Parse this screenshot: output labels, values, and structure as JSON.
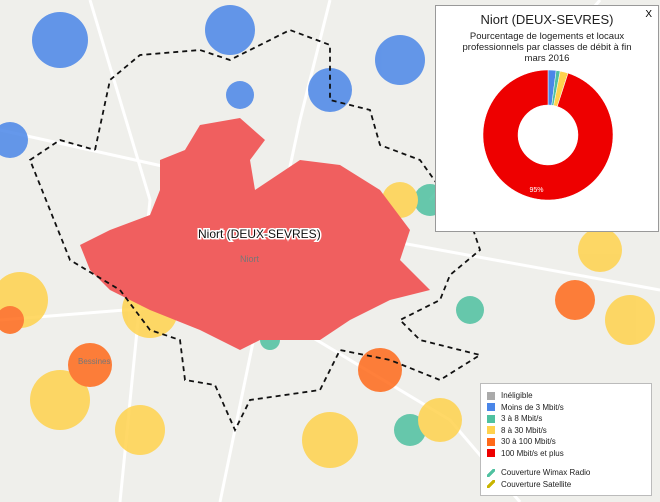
{
  "chart_data": {
    "type": "pie",
    "title": "Niort (DEUX-SEVRES)",
    "subtitle": "Pourcentage de logements et locaux professionnels par classes de débit à fin mars 2016",
    "values": [
      0,
      2,
      1,
      2,
      0,
      95
    ],
    "value_labels": [
      null,
      null,
      null,
      null,
      null,
      "95%"
    ],
    "colors": [
      "#aaaaaa",
      "#4a86e8",
      "#4fc1a0",
      "#ffd24d",
      "#ff6a1a",
      "#ee0000"
    ]
  },
  "close": "X",
  "map_labels": [
    {
      "text": "Niort (DEUX-SEVRES)"
    },
    {
      "text": "Niort"
    },
    {
      "text": "Bessines"
    }
  ],
  "legend": [
    {
      "label": "Inéligible",
      "color": "#aaaaaa"
    },
    {
      "label": "Moins de 3 Mbit/s",
      "color": "#4a86e8"
    },
    {
      "label": "3 à 8 Mbit/s",
      "color": "#4fc1a0"
    },
    {
      "label": "8 à 30 Mbit/s",
      "color": "#ffd24d"
    },
    {
      "label": "30 à 100 Mbit/s",
      "color": "#ff6a1a"
    },
    {
      "label": "100 Mbit/s et plus",
      "color": "#ee0000"
    },
    {
      "label": "Couverture Wimax Radio",
      "color": "#4fc1a0"
    },
    {
      "label": "Couverture Satellite",
      "color": "#c8b400"
    }
  ]
}
